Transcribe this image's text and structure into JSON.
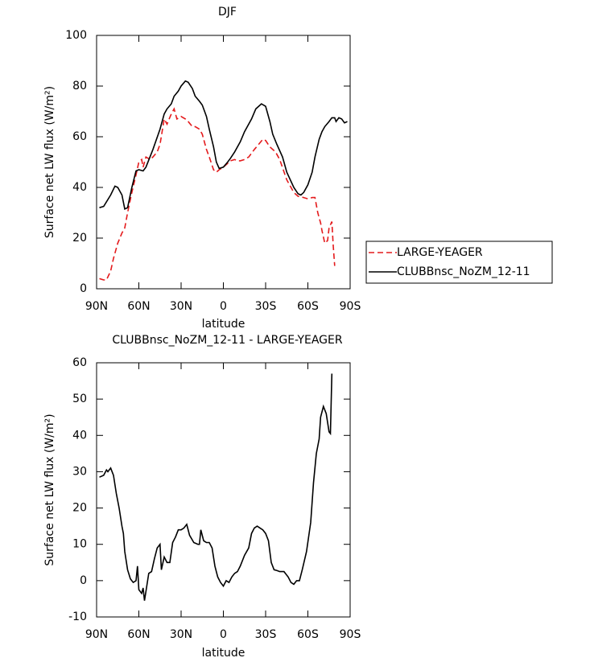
{
  "chart_data": [
    {
      "type": "line",
      "title": "DJF",
      "xlabel": "latitude",
      "ylabel": "Surface net LW flux (W/m²)",
      "xlim": [
        90,
        -90
      ],
      "xticks": [
        {
          "value": 90,
          "label": "90N"
        },
        {
          "value": 60,
          "label": "60N"
        },
        {
          "value": 30,
          "label": "30N"
        },
        0,
        {
          "value": -30,
          "label": "30S"
        },
        {
          "value": -60,
          "label": "60S"
        },
        {
          "value": -90,
          "label": "90S"
        }
      ],
      "ylim": [
        0,
        100
      ],
      "yticks": [
        0,
        20,
        40,
        60,
        80,
        100
      ],
      "legend": "right",
      "series": [
        {
          "name": "LARGE-YEAGER",
          "color": "#e41a1c",
          "style": "dashed",
          "x": [
            88,
            85,
            83,
            80,
            78,
            75,
            72,
            70,
            68,
            65,
            62,
            60,
            58,
            57,
            55,
            52,
            50,
            47,
            45,
            42,
            40,
            37,
            35,
            33,
            30,
            27,
            25,
            22,
            20,
            17,
            15,
            12,
            10,
            7,
            5,
            3,
            0,
            -3,
            -5,
            -8,
            -10,
            -12,
            -15,
            -18,
            -22,
            -25,
            -28,
            -30,
            -33,
            -37,
            -40,
            -45,
            -50,
            -53,
            -57,
            -60,
            -63,
            -65,
            -67,
            -69,
            -70,
            -72,
            -74,
            -75,
            -77,
            -78,
            -79
          ],
          "values": [
            4,
            3.5,
            3.5,
            7,
            12,
            18,
            22,
            24,
            30,
            38,
            45,
            50,
            51,
            48,
            52,
            51,
            52,
            54,
            57,
            67,
            65,
            69,
            71,
            67,
            68,
            67,
            66,
            64,
            64,
            63,
            61,
            55,
            52,
            47,
            46,
            47,
            48,
            49.5,
            50.5,
            51,
            50.5,
            50.5,
            51,
            52,
            55,
            57,
            59,
            58.5,
            56,
            54,
            51,
            43,
            38,
            36.5,
            36,
            35.5,
            36,
            36,
            30,
            26,
            23,
            18,
            19,
            24,
            26.5,
            17,
            9
          ]
        },
        {
          "name": "CLUBBnsc_NoZM_12-11",
          "color": "#000000",
          "style": "solid",
          "x": [
            88,
            85,
            80,
            77,
            75,
            72,
            70,
            68,
            65,
            62,
            60,
            57,
            55,
            50,
            45,
            42,
            40,
            37,
            35,
            32,
            30,
            27,
            25,
            22,
            20,
            17,
            15,
            12,
            10,
            7,
            5,
            3,
            0,
            -3,
            -5,
            -8,
            -12,
            -15,
            -20,
            -23,
            -27,
            -30,
            -33,
            -35,
            -38,
            -42,
            -45,
            -50,
            -53,
            -55,
            -57,
            -60,
            -63,
            -65,
            -68,
            -70,
            -72,
            -75,
            -77,
            -79,
            -80,
            -82,
            -84,
            -86,
            -88
          ],
          "values": [
            32,
            32.5,
            37,
            40.5,
            40,
            37,
            31.5,
            32,
            40,
            46.5,
            47,
            46.5,
            48,
            55,
            63,
            69,
            71,
            73,
            76,
            78,
            80,
            82,
            81.5,
            79,
            76,
            74,
            72.5,
            68,
            63,
            56,
            50,
            47.5,
            48,
            50,
            51.5,
            54,
            58,
            62,
            67,
            71,
            73,
            72,
            66,
            61,
            57,
            52,
            46,
            40,
            37.5,
            37,
            38,
            41,
            46,
            52,
            59,
            62,
            64,
            66,
            67.5,
            67.5,
            66,
            67.5,
            67,
            65.5,
            66
          ]
        }
      ]
    },
    {
      "type": "line",
      "title": "CLUBBnsc_NoZM_12-11 - LARGE-YEAGER",
      "xlabel": "latitude",
      "ylabel": "Surface net LW flux (W/m²)",
      "xlim": [
        90,
        -90
      ],
      "xticks": [
        {
          "value": 90,
          "label": "90N"
        },
        {
          "value": 60,
          "label": "60N"
        },
        {
          "value": 30,
          "label": "30N"
        },
        0,
        {
          "value": -30,
          "label": "30S"
        },
        {
          "value": -60,
          "label": "60S"
        },
        {
          "value": -90,
          "label": "90S"
        }
      ],
      "ylim": [
        -10,
        60
      ],
      "yticks": [
        -10,
        0,
        10,
        20,
        30,
        40,
        50,
        60
      ],
      "series": [
        {
          "color": "#000000",
          "style": "solid",
          "x": [
            88,
            85,
            83,
            82,
            80,
            78,
            76,
            74,
            72,
            71,
            70,
            68,
            66,
            64,
            62,
            61,
            60,
            58,
            57,
            56,
            55,
            53,
            51,
            49,
            47,
            45,
            44,
            42,
            40,
            38,
            36,
            34,
            32,
            30,
            28,
            26,
            24,
            21,
            18,
            17,
            16,
            14,
            12,
            10,
            8,
            6,
            4,
            2,
            0,
            -2,
            -4,
            -6,
            -8,
            -10,
            -12,
            -15,
            -18,
            -20,
            -22,
            -24,
            -26,
            -28,
            -30,
            -32,
            -34,
            -36,
            -38,
            -40,
            -43,
            -46,
            -48,
            -50,
            -52,
            -54,
            -56,
            -59,
            -62,
            -64,
            -66,
            -68,
            -69,
            -71,
            -73,
            -75,
            -76,
            -77
          ],
          "values": [
            28.5,
            29,
            30.5,
            30,
            31,
            29,
            24,
            20,
            15,
            13,
            8,
            3,
            0.5,
            -0.5,
            0,
            4,
            -2.5,
            -3.5,
            -2,
            -5.5,
            -3,
            2,
            2.5,
            6,
            9,
            10,
            3,
            6.5,
            5,
            5,
            10.5,
            12,
            14,
            14,
            14.5,
            15.5,
            12.5,
            10.5,
            10,
            10,
            14,
            11,
            10.5,
            10.5,
            9,
            4,
            1,
            -0.5,
            -1.5,
            0,
            -0.5,
            1,
            2,
            2.5,
            4,
            7,
            9,
            13,
            14.5,
            15,
            14.5,
            14,
            13,
            11,
            5,
            3,
            2.8,
            2.5,
            2.5,
            1,
            -0.5,
            -1,
            0,
            0,
            3,
            8,
            16,
            27,
            35,
            39,
            45,
            48,
            46,
            41,
            40.5,
            57
          ]
        }
      ]
    }
  ]
}
